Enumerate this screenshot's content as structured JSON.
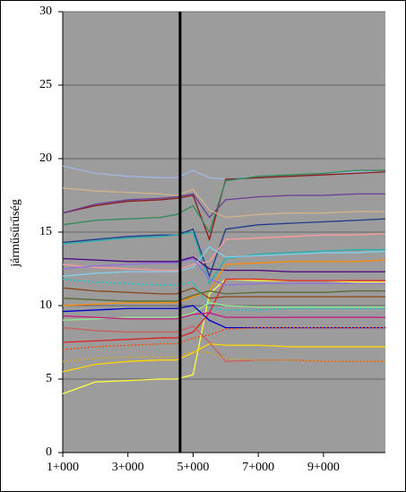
{
  "chart_data": {
    "type": "line",
    "ylabel": "járműsűrűség",
    "x": [
      1,
      2,
      3,
      4,
      4.5,
      5,
      5.5,
      6,
      7,
      8,
      9,
      10,
      10.9
    ],
    "xlim": [
      1,
      10.9
    ],
    "xticks": [
      {
        "value": 1,
        "label": "1+000"
      },
      {
        "value": 3,
        "label": "3+000"
      },
      {
        "value": 5,
        "label": "5+000"
      },
      {
        "value": 7,
        "label": "7+000"
      },
      {
        "value": 9,
        "label": "9+000"
      }
    ],
    "ylim": [
      0,
      30
    ],
    "yticks": [
      0,
      5,
      10,
      15,
      20,
      25,
      30
    ],
    "grid": true,
    "background": "#9c9c9c",
    "vline": 4.6,
    "vline_color": "#000000",
    "series": [
      {
        "color": "#a0b8e0",
        "values": [
          19.5,
          19.0,
          18.8,
          18.7,
          18.7,
          19.2,
          18.7,
          18.6,
          18.8,
          18.9,
          19.0,
          19.1,
          19.1
        ]
      },
      {
        "color": "#8b1a1a",
        "values": [
          16.3,
          16.8,
          17.1,
          17.2,
          17.3,
          17.5,
          14.5,
          18.6,
          18.7,
          18.8,
          18.9,
          19.0,
          19.1
        ]
      },
      {
        "color": "#2e8b57",
        "values": [
          15.5,
          15.8,
          15.9,
          16.0,
          16.2,
          16.8,
          15.0,
          18.5,
          18.8,
          18.9,
          19.0,
          19.2,
          19.2
        ]
      },
      {
        "color": "#6a3d9a",
        "values": [
          16.3,
          16.9,
          17.2,
          17.3,
          17.4,
          17.6,
          16.0,
          17.2,
          17.4,
          17.5,
          17.5,
          17.6,
          17.6
        ]
      },
      {
        "color": "#1e3a8a",
        "values": [
          14.3,
          14.5,
          14.7,
          14.8,
          14.8,
          15.2,
          12.0,
          15.2,
          15.5,
          15.6,
          15.7,
          15.8,
          15.9
        ]
      },
      {
        "color": "#20b2aa",
        "values": [
          14.2,
          14.4,
          14.6,
          14.7,
          14.8,
          15.0,
          11.5,
          13.2,
          13.5,
          13.6,
          13.7,
          13.8,
          13.8
        ]
      },
      {
        "color": "#ffff40",
        "values": [
          4.0,
          4.8,
          4.9,
          5.0,
          5.0,
          5.3,
          10.8,
          11.8,
          11.7,
          11.7,
          11.7,
          11.6,
          11.6
        ]
      },
      {
        "color": "#e02020",
        "values": [
          7.5,
          7.6,
          7.7,
          7.8,
          7.8,
          8.2,
          9.5,
          11.8,
          11.8,
          11.7,
          11.7,
          11.7,
          11.7
        ]
      },
      {
        "color": "#d2b48c",
        "values": [
          18.0,
          17.8,
          17.7,
          17.6,
          17.5,
          17.9,
          16.5,
          16.0,
          16.2,
          16.3,
          16.3,
          16.4,
          16.4
        ]
      },
      {
        "color": "#ff9a9a",
        "values": [
          12.8,
          12.6,
          12.5,
          12.4,
          12.4,
          12.8,
          13.0,
          14.5,
          14.6,
          14.7,
          14.8,
          14.8,
          14.9
        ]
      },
      {
        "color": "#4b0082",
        "values": [
          13.2,
          13.1,
          13.0,
          13.0,
          13.0,
          13.3,
          12.5,
          12.4,
          12.4,
          12.3,
          12.3,
          12.3,
          12.3
        ]
      },
      {
        "color": "#ff8c00",
        "values": [
          10.0,
          10.1,
          10.2,
          10.2,
          10.2,
          10.6,
          11.0,
          12.8,
          12.9,
          13.0,
          13.0,
          13.0,
          13.1
        ]
      },
      {
        "color": "#8b4513",
        "values": [
          11.2,
          11.0,
          10.9,
          10.8,
          10.8,
          11.2,
          10.5,
          10.6,
          10.6,
          10.6,
          10.6,
          10.6,
          10.6
        ]
      },
      {
        "color": "#90ee90",
        "values": [
          9.0,
          9.1,
          9.2,
          9.2,
          9.2,
          9.5,
          10.2,
          10.0,
          9.9,
          9.9,
          9.9,
          9.9,
          9.9
        ]
      },
      {
        "color": "#0000cd",
        "values": [
          9.6,
          9.7,
          9.8,
          9.8,
          9.8,
          10.0,
          9.0,
          8.5,
          8.5,
          8.5,
          8.5,
          8.5,
          8.5
        ]
      },
      {
        "color": "#ff4500",
        "dash": true,
        "values": [
          7.0,
          7.2,
          7.3,
          7.4,
          7.4,
          7.8,
          8.0,
          8.4,
          8.5,
          8.5,
          8.5,
          8.5,
          8.5
        ]
      },
      {
        "color": "#ffd700",
        "values": [
          5.5,
          6.0,
          6.2,
          6.3,
          6.3,
          6.8,
          7.4,
          7.3,
          7.3,
          7.2,
          7.2,
          7.2,
          7.2
        ]
      },
      {
        "color": "#cd5c5c",
        "values": [
          8.5,
          8.3,
          8.2,
          8.2,
          8.2,
          8.6,
          7.5,
          6.2,
          6.3,
          6.3,
          6.2,
          6.2,
          6.2
        ]
      },
      {
        "color": "#daa520",
        "dash": true,
        "values": [
          6.2,
          6.4,
          6.5,
          6.5,
          6.5,
          6.9,
          6.8,
          6.4,
          6.3,
          6.3,
          6.2,
          6.2,
          6.2
        ]
      },
      {
        "color": "#87ceeb",
        "values": [
          12.0,
          12.2,
          12.3,
          12.3,
          12.3,
          12.6,
          14.0,
          13.3,
          13.4,
          13.5,
          13.6,
          13.6,
          13.7
        ]
      },
      {
        "color": "#556b2f",
        "values": [
          10.5,
          10.4,
          10.3,
          10.3,
          10.3,
          10.7,
          11.0,
          10.8,
          10.9,
          10.9,
          10.9,
          11.0,
          11.0
        ]
      },
      {
        "color": "#9370db",
        "values": [
          12.5,
          12.7,
          12.8,
          12.9,
          12.9,
          13.2,
          11.8,
          11.4,
          11.5,
          11.5,
          11.5,
          11.5,
          11.5
        ]
      },
      {
        "color": "#c71585",
        "values": [
          9.3,
          9.2,
          9.1,
          9.1,
          9.1,
          9.4,
          9.5,
          9.2,
          9.2,
          9.2,
          9.2,
          9.2,
          9.2
        ]
      },
      {
        "color": "#00ced1",
        "dash": true,
        "values": [
          11.8,
          11.6,
          11.5,
          11.4,
          11.4,
          11.6,
          9.8,
          9.7,
          9.7,
          9.8,
          9.8,
          9.8,
          9.8
        ]
      }
    ]
  }
}
